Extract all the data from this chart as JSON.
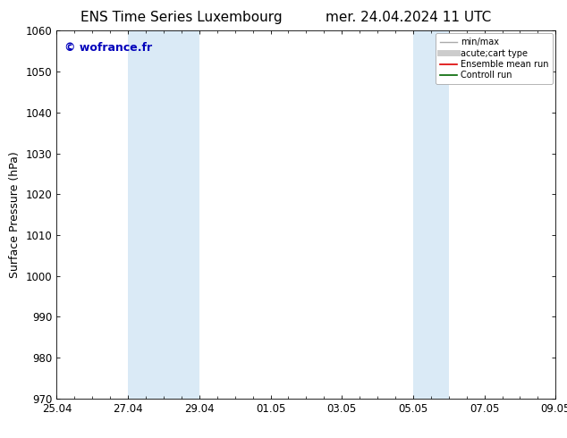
{
  "title_left": "ENS Time Series Luxembourg",
  "title_right": "mer. 24.04.2024 11 UTC",
  "ylabel": "Surface Pressure (hPa)",
  "ylim": [
    970,
    1060
  ],
  "yticks": [
    970,
    980,
    990,
    1000,
    1010,
    1020,
    1030,
    1040,
    1050,
    1060
  ],
  "xlim": [
    0,
    14
  ],
  "xtick_labels": [
    "25.04",
    "27.04",
    "29.04",
    "01.05",
    "03.05",
    "05.05",
    "07.05",
    "09.05"
  ],
  "xtick_positions": [
    0,
    2,
    4,
    6,
    8,
    10,
    12,
    14
  ],
  "shaded_bands": [
    {
      "x_start": 2,
      "x_end": 4
    },
    {
      "x_start": 10,
      "x_end": 11
    }
  ],
  "band_color": "#daeaf6",
  "watermark": "© wofrance.fr",
  "watermark_color": "#0000bb",
  "legend_entries": [
    {
      "label": "min/max",
      "color": "#aaaaaa",
      "lw": 1.0,
      "ls": "-"
    },
    {
      "label": "acute;cart type",
      "color": "#cccccc",
      "lw": 5,
      "ls": "-"
    },
    {
      "label": "Ensemble mean run",
      "color": "#dd0000",
      "lw": 1.2,
      "ls": "-"
    },
    {
      "label": "Controll run",
      "color": "#006600",
      "lw": 1.2,
      "ls": "-"
    }
  ],
  "bg_color": "#ffffff",
  "spine_color": "#000000",
  "title_fontsize": 11,
  "label_fontsize": 9,
  "tick_fontsize": 8.5,
  "legend_fontsize": 7,
  "watermark_fontsize": 9
}
